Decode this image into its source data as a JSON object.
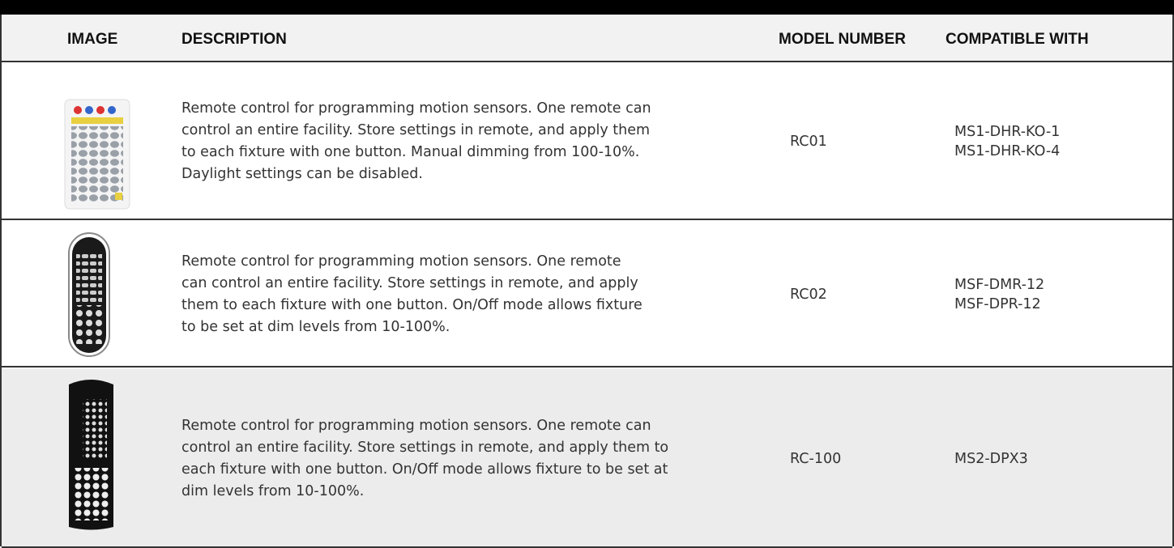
{
  "table": {
    "headers": [
      "IMAGE",
      "DESCRIPTION",
      "MODEL NUMBER",
      "COMPATIBLE WITH"
    ],
    "rows": [
      {
        "description": [
          "Remote control for programming motion sensors. One remote can",
          "control an entire facility. Store settings in remote, and apply them",
          "to each fixture with one button. Manual dimming from 100-10%.",
          "Daylight settings can be disabled."
        ],
        "model": "RC01",
        "compatible": [
          "MS1-DHR-KO-1",
          "MS1-DHR-KO-4"
        ]
      },
      {
        "description": [
          "Remote control for programming motion sensors. One remote",
          "can control an entire facility. Store settings in remote, and apply",
          "them to each fixture with one button. On/Off mode allows fixture",
          "to be set at dim levels from 10-100%."
        ],
        "model": "RC02",
        "compatible": [
          "MSF-DMR-12",
          "MSF-DPR-12"
        ]
      },
      {
        "description": [
          "Remote control for programming motion sensors. One remote can",
          "control an entire facility. Store settings in remote, and apply them to",
          "each fixture with one button. On/Off mode allows fixture to be set at",
          "dim levels from 10-100%."
        ],
        "model": "RC-100",
        "compatible": [
          "MS2-DPX3"
        ]
      }
    ]
  }
}
